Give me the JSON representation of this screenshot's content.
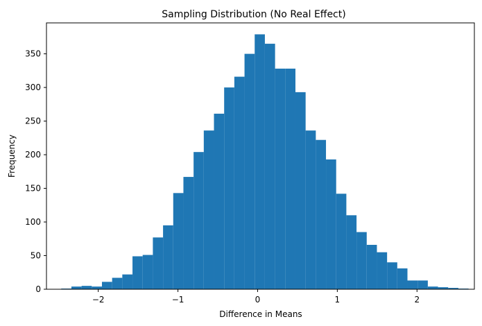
{
  "chart_data": {
    "type": "bar",
    "title": "Sampling Distribution (No Real Effect)",
    "xlabel": "Difference in Means",
    "ylabel": "Frequency",
    "xlim": [
      -2.65,
      2.72
    ],
    "ylim": [
      0,
      396
    ],
    "x_ticks": [
      -2,
      -1,
      0,
      1,
      2
    ],
    "y_ticks": [
      0,
      50,
      100,
      150,
      200,
      250,
      300,
      350
    ],
    "bar_color": "#1f77b4",
    "bin_edges": [
      -2.465,
      -2.3372,
      -2.2094,
      -2.0816,
      -1.9538,
      -1.826,
      -1.6982,
      -1.5704,
      -1.4426,
      -1.3148,
      -1.187,
      -1.0592,
      -0.9314,
      -0.8036,
      -0.6758,
      -0.548,
      -0.4202,
      -0.2924,
      -0.1646,
      -0.0368,
      0.091,
      0.2188,
      0.3466,
      0.4744,
      0.6022,
      0.73,
      0.8578,
      0.9856,
      1.1134,
      1.2412,
      1.369,
      1.4968,
      1.6246,
      1.7524,
      1.8802,
      2.008,
      2.1358,
      2.2636,
      2.3914,
      2.5192,
      2.647
    ],
    "counts": [
      1,
      4,
      5,
      4,
      11,
      17,
      22,
      49,
      51,
      77,
      95,
      143,
      167,
      204,
      236,
      261,
      300,
      316,
      350,
      379,
      365,
      328,
      328,
      293,
      236,
      222,
      193,
      142,
      110,
      85,
      66,
      55,
      40,
      31,
      13,
      13,
      4,
      3,
      2,
      1
    ]
  }
}
